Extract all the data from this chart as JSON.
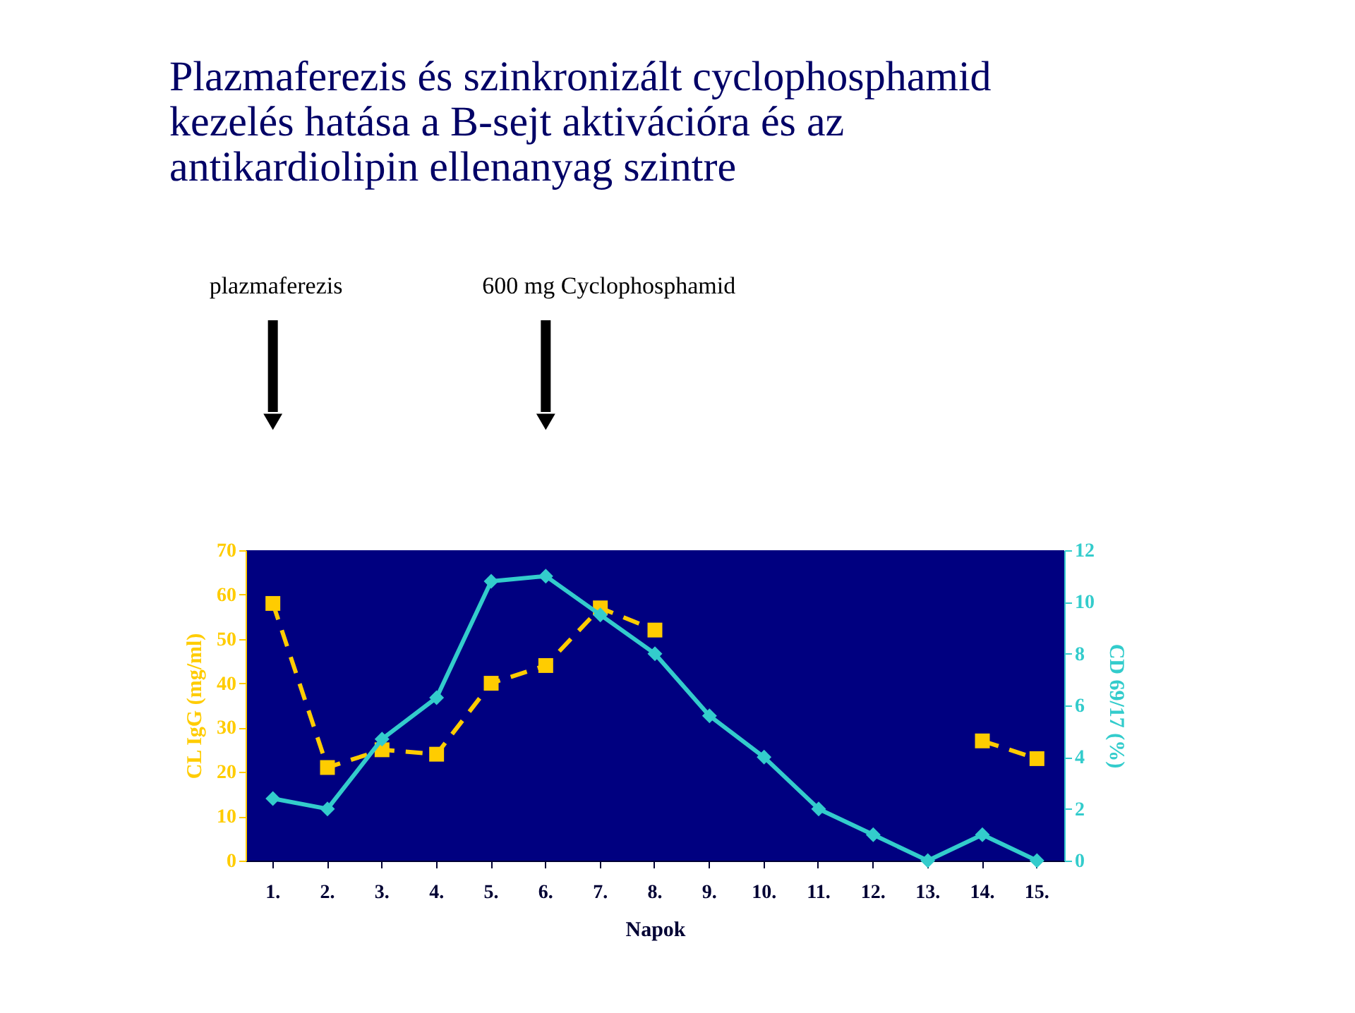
{
  "chart_data": {
    "type": "line",
    "title": [
      "Plazmaferezis és szinkronizált cyclophosphamid",
      "kezelés hatása a B-sejt aktivációra és az",
      "antikardiolipin ellenanyag szintre"
    ],
    "categories": [
      "1.",
      "2.",
      "3.",
      "4.",
      "5.",
      "6.",
      "7.",
      "8.",
      "9.",
      "10.",
      "11.",
      "12.",
      "13.",
      "14.",
      "15."
    ],
    "series": [
      {
        "color": "#ffcc00",
        "marker": "square",
        "line_style": "dashed",
        "values": [
          58,
          21,
          25,
          24,
          40,
          44,
          57,
          52,
          null,
          null,
          null,
          null,
          null,
          27,
          23
        ]
      },
      {
        "color": "#33cccc",
        "marker": "diamond",
        "line_style": "solid",
        "axis": "y2",
        "values": [
          2.4,
          2.0,
          4.7,
          6.3,
          10.8,
          11.0,
          9.5,
          8.0,
          5.6,
          4.0,
          2.0,
          1.0,
          0,
          1.0,
          0
        ]
      }
    ],
    "xlabel": "Napok",
    "ylabel": "CL IgG (mg/ml)",
    "y2label": "CD 69/17 (%)",
    "ylim": [
      0,
      70
    ],
    "yticks": [
      0,
      10,
      20,
      30,
      40,
      50,
      60,
      70
    ],
    "y2lim": [
      0,
      12
    ],
    "y2ticks": [
      0,
      2,
      4,
      6,
      8,
      10,
      12
    ],
    "annotations": [
      "plazmaferezis",
      "600 mg Cyclophosphamid"
    ],
    "grid": false
  }
}
